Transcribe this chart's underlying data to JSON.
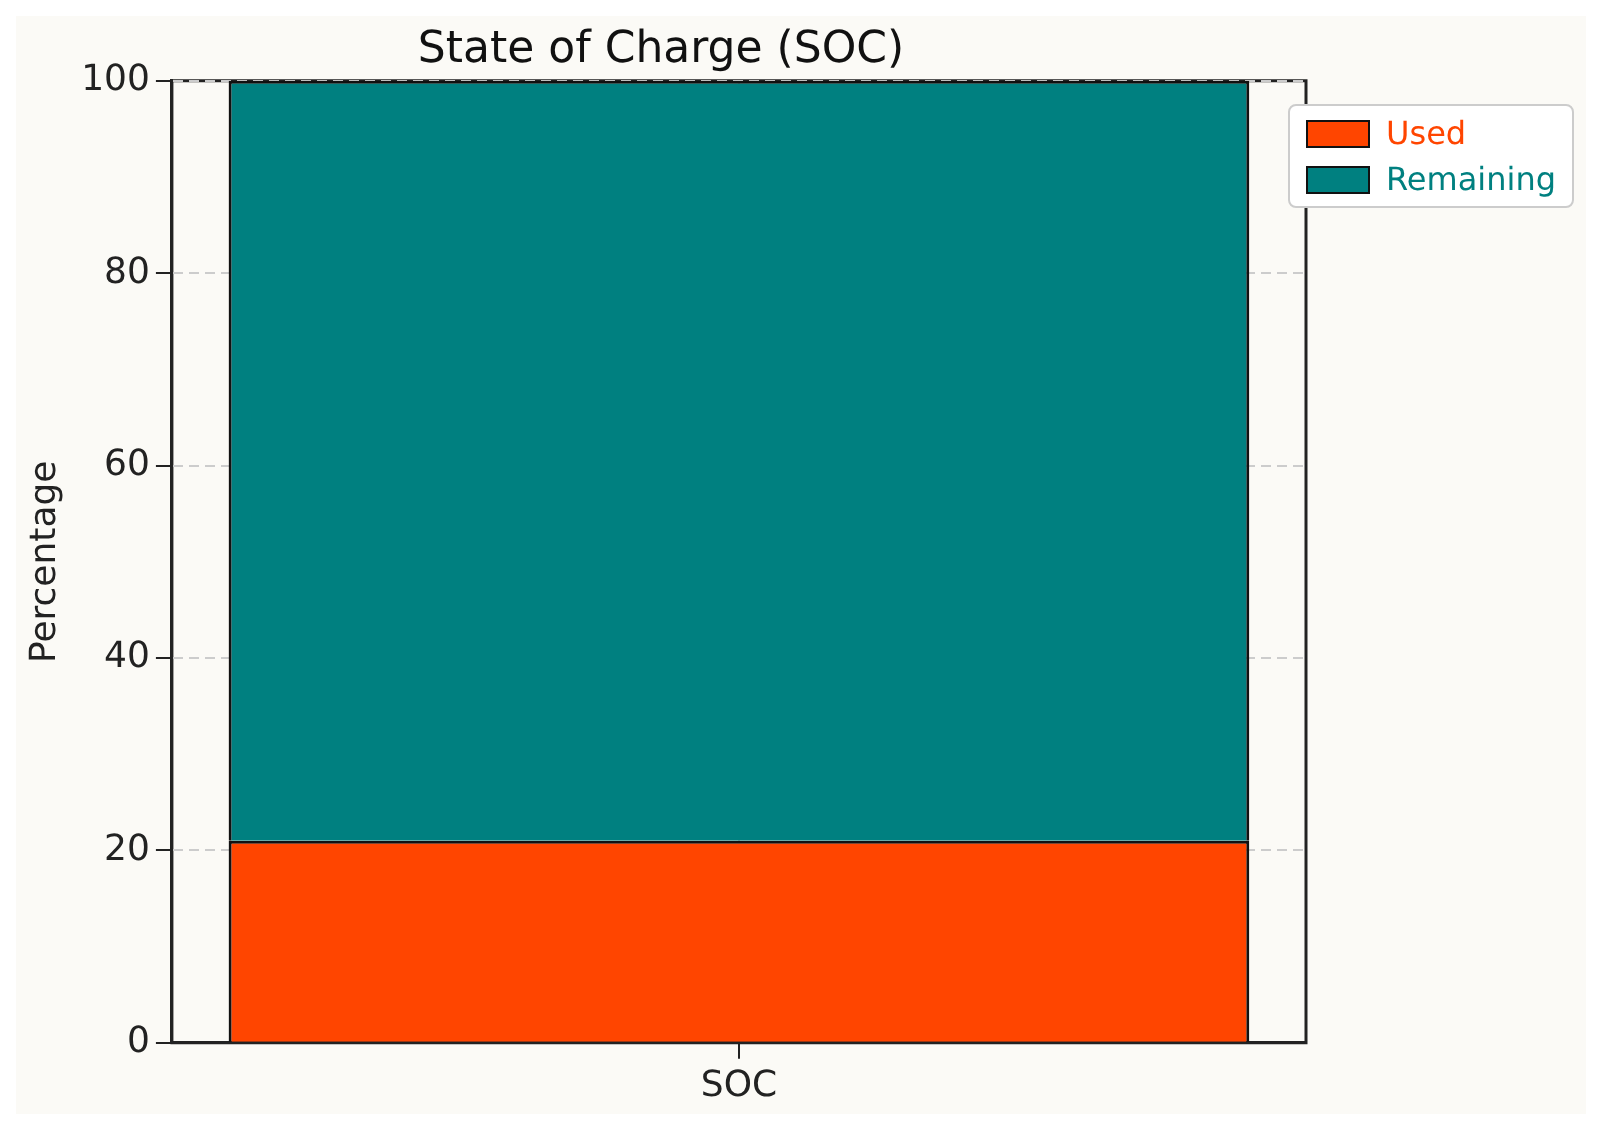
{
  "chart_data": {
    "type": "bar",
    "title": "State of Charge (SOC)",
    "ylabel": "Percentage",
    "categories": [
      "SOC"
    ],
    "stacked": true,
    "series": [
      {
        "name": "Used",
        "color": "#ff4500",
        "values": [
          21
        ]
      },
      {
        "name": "Remaining",
        "color": "#008080",
        "values": [
          79
        ]
      }
    ],
    "ylim": [
      0,
      100
    ],
    "yticks": [
      0,
      20,
      40,
      60,
      80,
      100
    ],
    "grid": true,
    "legend": "top right"
  }
}
